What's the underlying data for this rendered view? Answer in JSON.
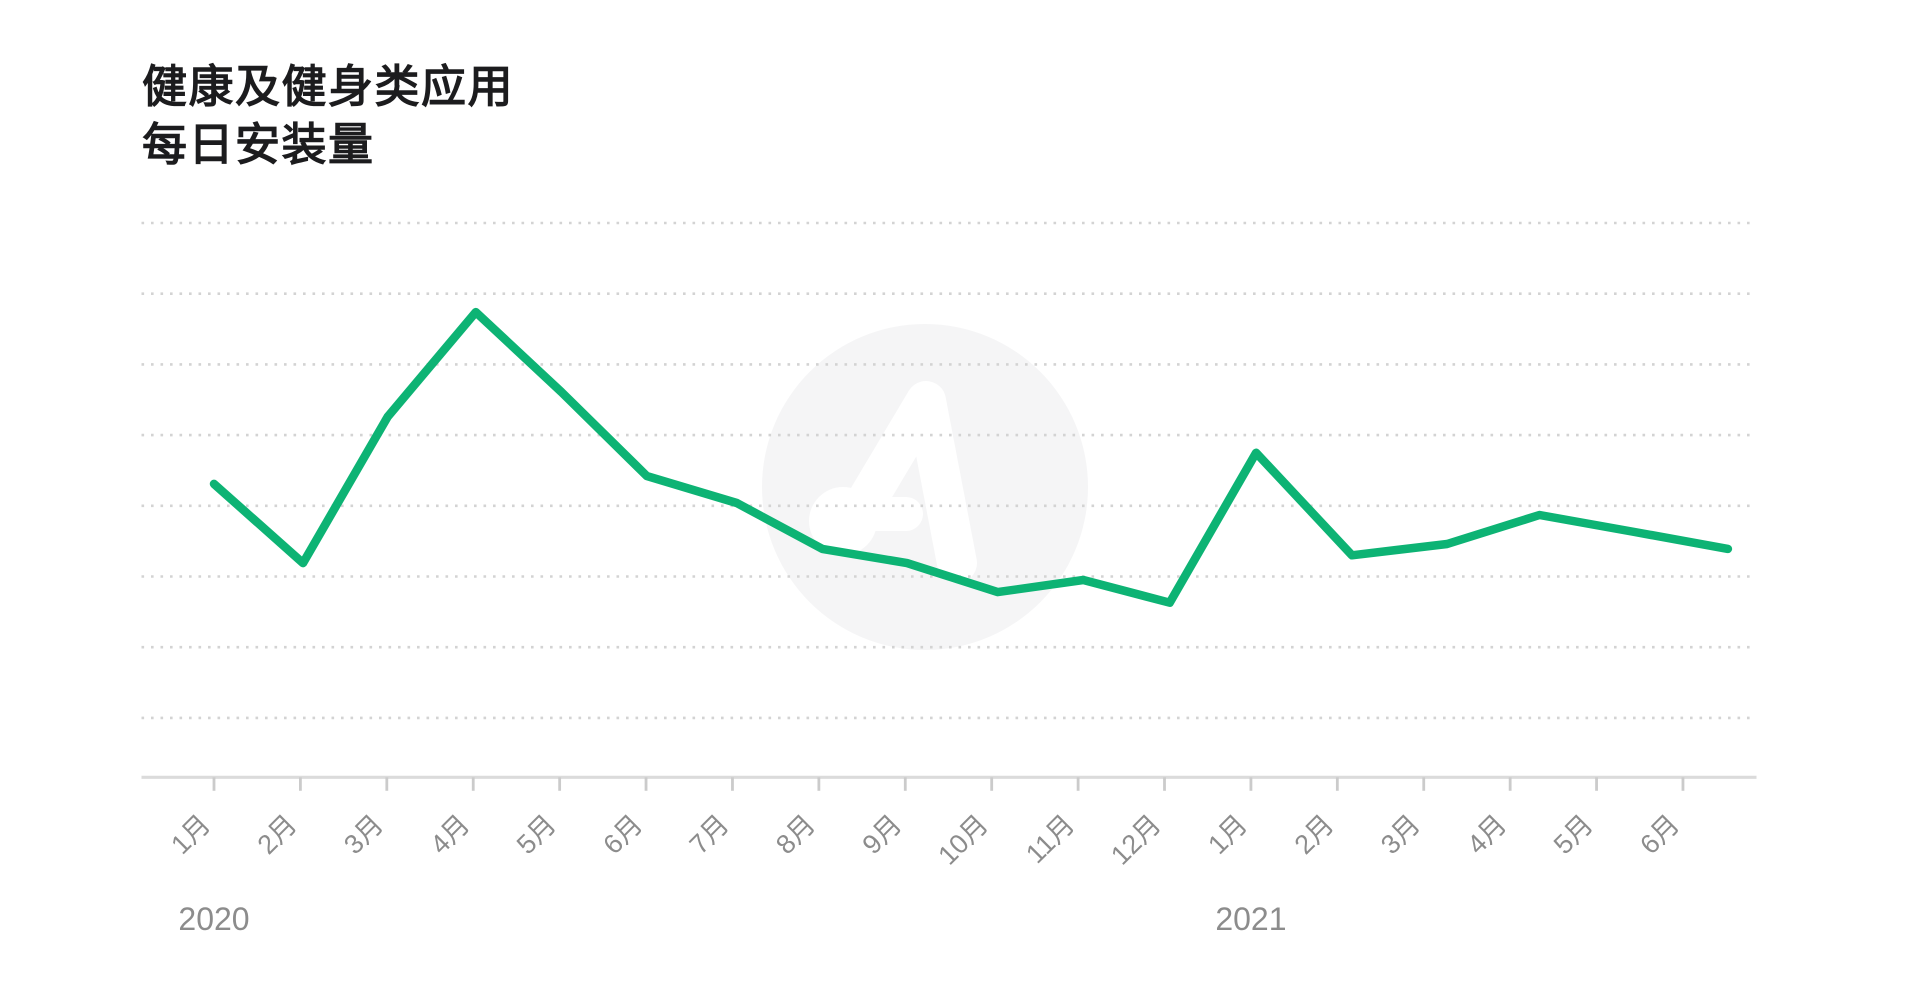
{
  "title": {
    "line1": "健康及健身类应用",
    "line2": "每日安装量"
  },
  "colors": {
    "line_green": "#0db374",
    "title_text": "#1c1c1e",
    "axis_text": "#8c8c8c",
    "axis_line": "#dbdbdb",
    "tick": "#cbcbcb",
    "gridline": "#d3d3d3",
    "watermark": "#f5f5f6",
    "background": "#ffffff"
  },
  "chart_data": {
    "type": "line",
    "title": "健康及健身类应用 每日安装量",
    "legend": false,
    "grid": "horizontal-dotted",
    "x_axis": {
      "kind": "months",
      "tick_labels": [
        "1月",
        "2月",
        "3月",
        "4月",
        "5月",
        "6月",
        "7月",
        "8月",
        "9月",
        "10月",
        "11月",
        "12月",
        "1月",
        "2月",
        "3月",
        "4月",
        "5月",
        "6月"
      ],
      "year_labels": [
        {
          "text": "2020",
          "tick_index": 0
        },
        {
          "text": "2021",
          "tick_index": 12
        }
      ]
    },
    "y_axis": {
      "numeric_labels_visible": false,
      "unit": "relative daily installs (one gridline step = 10)",
      "gridline_values": [
        8.4,
        18.4,
        28.4,
        38.4,
        48.4,
        58.4,
        68.4,
        78.4
      ],
      "ylim": [
        0,
        84
      ]
    },
    "series": [
      {
        "name": "每日安装量",
        "color": "#0db374",
        "points": [
          {
            "label": "1月",
            "year": 2020,
            "x_month": 0.0,
            "value": 41.5
          },
          {
            "label": "2月",
            "year": 2020,
            "x_month": 1.03,
            "value": 30.3
          },
          {
            "label": "3月",
            "year": 2020,
            "x_month": 2.01,
            "value": 51.0
          },
          {
            "label": "4月",
            "year": 2020,
            "x_month": 3.03,
            "value": 65.8
          },
          {
            "label": "5月",
            "year": 2020,
            "x_month": 4.02,
            "value": 54.5
          },
          {
            "label": "6月",
            "year": 2020,
            "x_month": 5.01,
            "value": 42.6
          },
          {
            "label": "7月",
            "year": 2020,
            "x_month": 6.05,
            "value": 38.8
          },
          {
            "label": "8月",
            "year": 2020,
            "x_month": 7.04,
            "value": 32.3
          },
          {
            "label": "9月",
            "year": 2020,
            "x_month": 8.02,
            "value": 30.3
          },
          {
            "label": "10月",
            "year": 2020,
            "x_month": 9.07,
            "value": 26.2
          },
          {
            "label": "11月",
            "year": 2020,
            "x_month": 10.06,
            "value": 27.9
          },
          {
            "label": "12月",
            "year": 2020,
            "x_month": 11.06,
            "value": 24.7
          },
          {
            "label": "1月",
            "year": 2021,
            "x_month": 12.06,
            "value": 45.9
          },
          {
            "label": "2月",
            "year": 2021,
            "x_month": 13.17,
            "value": 31.4
          },
          {
            "label": "3月",
            "year": 2021,
            "x_month": 14.27,
            "value": 33.0
          },
          {
            "label": "4月",
            "year": 2021,
            "x_month": 15.34,
            "value": 37.1
          },
          {
            "label": "5月",
            "year": 2021,
            "x_month": 16.44,
            "value": 34.7
          },
          {
            "label": "6月",
            "year": 2021,
            "x_month": 17.52,
            "value": 32.3
          }
        ]
      }
    ]
  }
}
